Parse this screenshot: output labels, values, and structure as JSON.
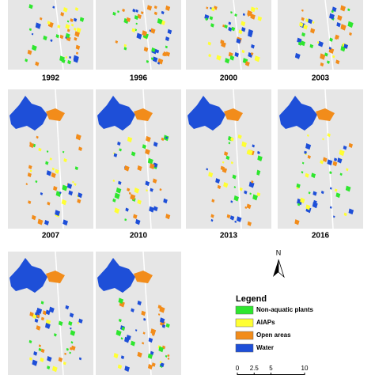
{
  "panels": {
    "years": [
      "1992",
      "1996",
      "2000",
      "2003",
      "2007",
      "2010",
      "2013",
      "2016"
    ]
  },
  "legend": {
    "title": "Legend",
    "items": [
      {
        "label": "Non-aquatic plants",
        "color": "#2ee62e"
      },
      {
        "label": "AIAPs",
        "color": "#ffff33"
      },
      {
        "label": "Open areas",
        "color": "#f28c1a"
      },
      {
        "label": "Water",
        "color": "#1e4fd8"
      }
    ]
  },
  "north": "N",
  "scale": {
    "ticks": [
      0,
      2.5,
      5,
      10
    ]
  }
}
